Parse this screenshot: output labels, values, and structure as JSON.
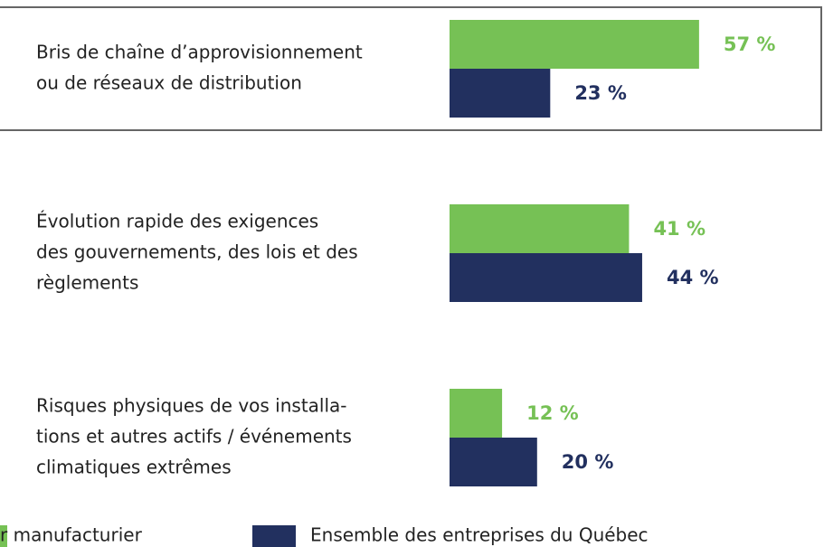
{
  "chart_data": {
    "type": "bar",
    "orientation": "horizontal",
    "categories": [
      [
        "Bris de chaîne d’approvisionnement",
        "ou de réseaux de distribution"
      ],
      [
        "Évolution rapide des exigences",
        "des gouvernements, des lois et des",
        "règlements"
      ],
      [
        "Risques physiques de vos installa-",
        "tions et autres actifs / événements",
        "climatiques extrêmes"
      ]
    ],
    "series": [
      {
        "name": "r manufacturier",
        "color": "#76c155",
        "values": [
          57,
          41,
          12
        ],
        "value_labels": [
          "57 %",
          "41 %",
          "12 %"
        ]
      },
      {
        "name": "Ensemble des entreprises du Québec",
        "color": "#22305f",
        "values": [
          23,
          44,
          20
        ],
        "value_labels": [
          "23 %",
          "44 %",
          "20 %"
        ]
      }
    ],
    "xlim": [
      0,
      100
    ]
  }
}
